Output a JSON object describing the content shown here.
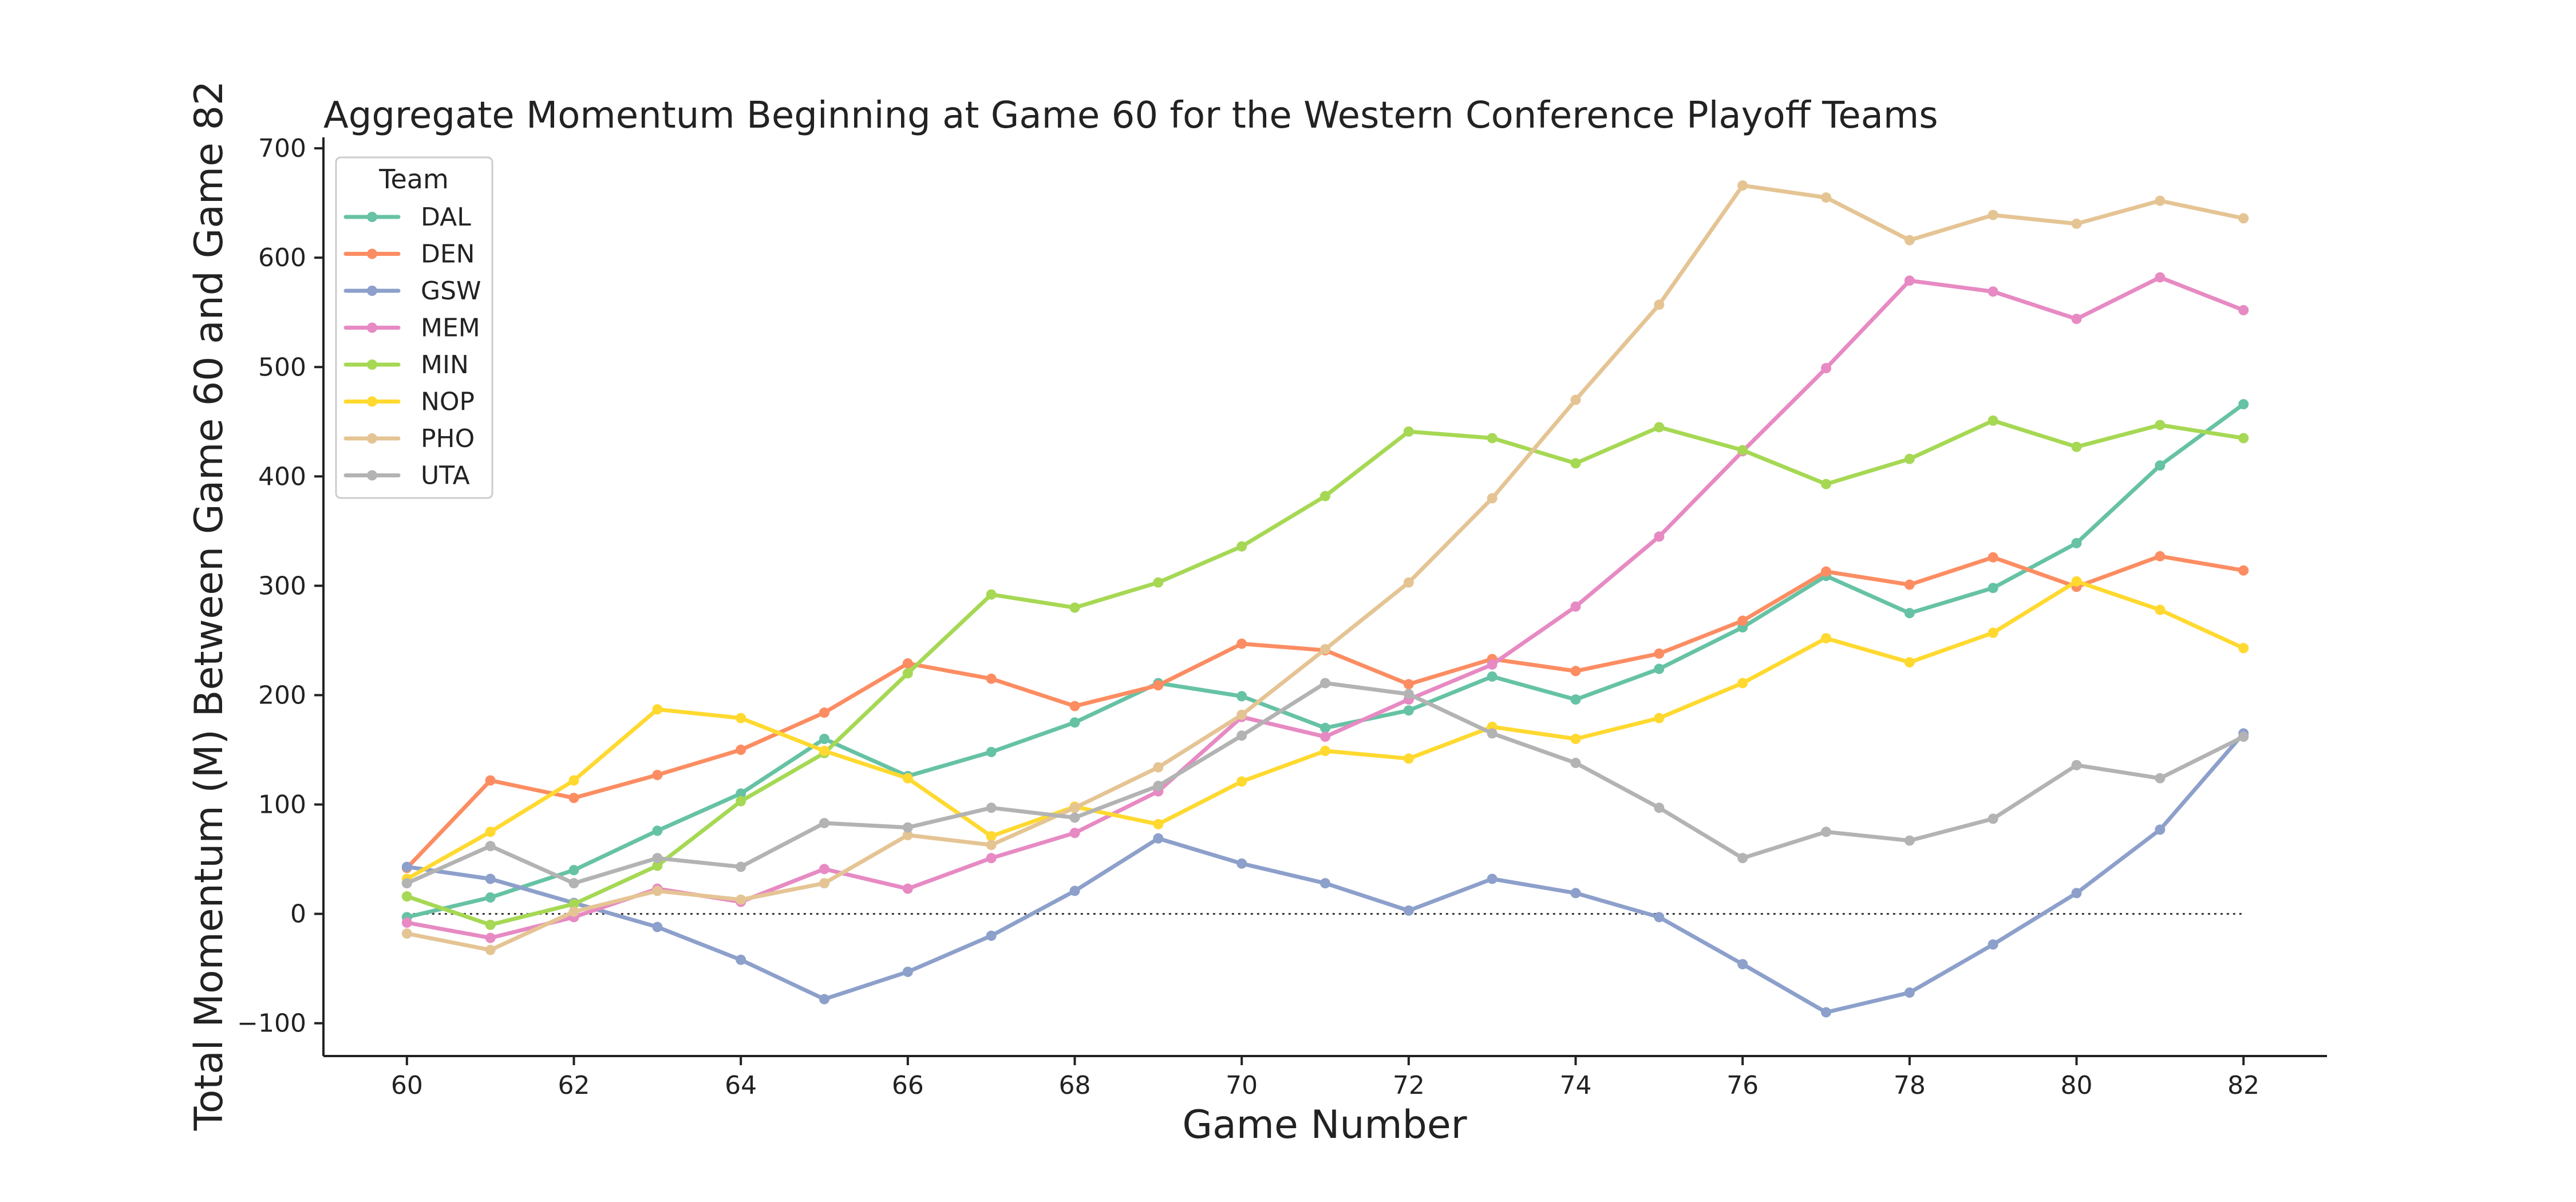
{
  "chart_data": {
    "type": "line",
    "title": "Aggregate Momentum Beginning at Game 60 for the Western Conference Playoff Teams",
    "xlabel": "Game Number",
    "ylabel": "Total Momentum (M) Between Game 60 and Game 82",
    "xlim": [
      59,
      83
    ],
    "ylim": [
      -130,
      710
    ],
    "xticks": [
      60,
      62,
      64,
      66,
      68,
      70,
      72,
      74,
      76,
      78,
      80,
      82
    ],
    "yticks": [
      -100,
      0,
      100,
      200,
      300,
      400,
      500,
      600,
      700
    ],
    "grid": false,
    "zero_line": true,
    "legend": {
      "title": "Team",
      "position": "top-left"
    },
    "x": [
      60,
      61,
      62,
      63,
      64,
      65,
      66,
      67,
      68,
      69,
      70,
      71,
      72,
      73,
      74,
      75,
      76,
      77,
      78,
      79,
      80,
      81,
      82
    ],
    "series": [
      {
        "name": "DAL",
        "color": "#66c2a5",
        "values": [
          -3,
          15,
          40,
          76,
          110,
          160,
          126,
          148,
          175,
          211,
          199,
          170,
          186,
          217,
          196,
          224,
          262,
          309,
          275,
          298,
          339,
          410,
          466
        ]
      },
      {
        "name": "DEN",
        "color": "#fc8d62",
        "values": [
          42,
          122,
          106,
          127,
          150,
          184,
          229,
          215,
          190,
          209,
          247,
          241,
          210,
          233,
          222,
          238,
          268,
          313,
          301,
          326,
          299,
          327,
          314
        ]
      },
      {
        "name": "GSW",
        "color": "#8da0cb",
        "values": [
          43,
          32,
          10,
          -12,
          -42,
          -78,
          -53,
          -20,
          21,
          69,
          46,
          28,
          3,
          32,
          19,
          -3,
          -46,
          -90,
          -72,
          -28,
          19,
          77,
          165
        ]
      },
      {
        "name": "MEM",
        "color": "#e78ac3",
        "values": [
          -8,
          -22,
          -3,
          23,
          11,
          41,
          23,
          51,
          74,
          112,
          180,
          162,
          196,
          228,
          281,
          345,
          423,
          499,
          579,
          569,
          544,
          582,
          552
        ]
      },
      {
        "name": "MIN",
        "color": "#a6d854",
        "values": [
          16,
          -10,
          9,
          44,
          103,
          147,
          220,
          292,
          280,
          303,
          336,
          382,
          441,
          435,
          412,
          445,
          424,
          393,
          416,
          451,
          427,
          447,
          435
        ]
      },
      {
        "name": "NOP",
        "color": "#ffd92f",
        "values": [
          32,
          75,
          122,
          187,
          179,
          149,
          124,
          71,
          98,
          82,
          121,
          149,
          142,
          171,
          160,
          179,
          211,
          252,
          230,
          257,
          304,
          278,
          243
        ]
      },
      {
        "name": "PHO",
        "color": "#e5c494",
        "values": [
          -18,
          -33,
          2,
          21,
          13,
          28,
          72,
          63,
          97,
          134,
          182,
          242,
          303,
          380,
          470,
          557,
          666,
          655,
          616,
          639,
          631,
          652,
          636
        ]
      },
      {
        "name": "UTA",
        "color": "#b3b3b3",
        "values": [
          28,
          62,
          28,
          51,
          43,
          83,
          79,
          97,
          88,
          117,
          163,
          211,
          201,
          165,
          138,
          97,
          51,
          75,
          67,
          87,
          136,
          124,
          162
        ]
      }
    ]
  }
}
